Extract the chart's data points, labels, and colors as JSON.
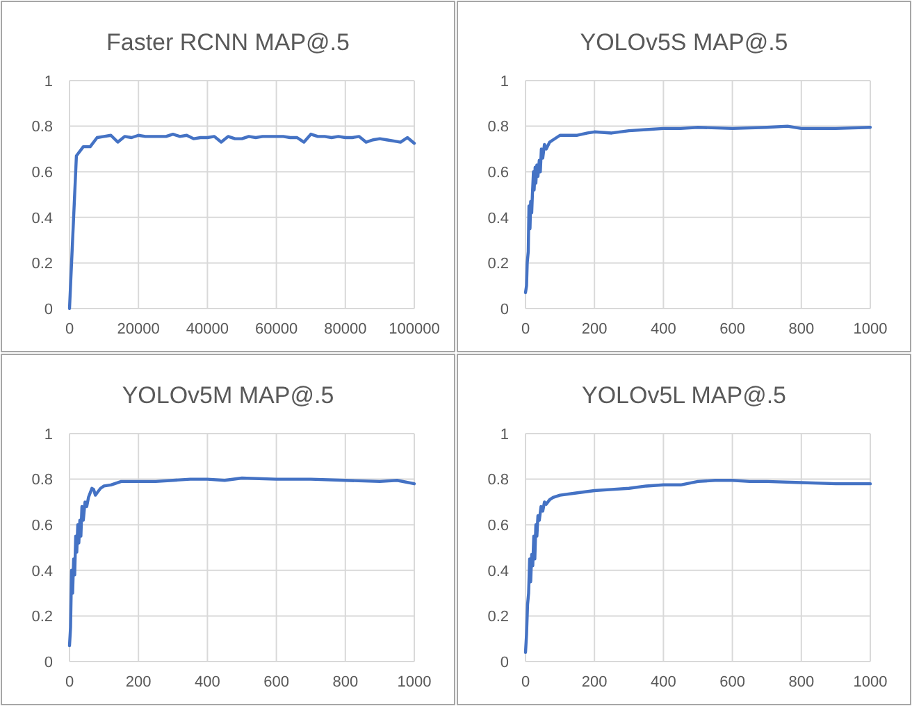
{
  "chart_data": [
    {
      "type": "line",
      "title": "Faster RCNN MAP@.5",
      "xlim": [
        0,
        100000
      ],
      "xticks": [
        0,
        20000,
        40000,
        60000,
        80000,
        100000
      ],
      "ylim": [
        0,
        1
      ],
      "yticks": [
        0,
        0.2,
        0.4,
        0.6,
        0.8,
        1
      ],
      "grid": true,
      "marker": "none",
      "line_style": "solid",
      "series": [
        {
          "color": "#4472c4",
          "x": [
            0,
            2000,
            4000,
            6000,
            8000,
            10000,
            12000,
            14000,
            16000,
            18000,
            20000,
            22000,
            24000,
            26000,
            28000,
            30000,
            32000,
            34000,
            36000,
            38000,
            40000,
            42000,
            44000,
            46000,
            48000,
            50000,
            52000,
            54000,
            56000,
            58000,
            60000,
            62000,
            64000,
            66000,
            68000,
            70000,
            72000,
            74000,
            76000,
            78000,
            80000,
            82000,
            84000,
            86000,
            88000,
            90000,
            92000,
            94000,
            96000,
            98000,
            100000
          ],
          "values": [
            0,
            0.67,
            0.71,
            0.71,
            0.75,
            0.755,
            0.76,
            0.73,
            0.755,
            0.75,
            0.76,
            0.755,
            0.755,
            0.755,
            0.755,
            0.765,
            0.755,
            0.76,
            0.745,
            0.75,
            0.75,
            0.755,
            0.73,
            0.755,
            0.745,
            0.745,
            0.755,
            0.75,
            0.755,
            0.755,
            0.755,
            0.755,
            0.75,
            0.75,
            0.73,
            0.765,
            0.755,
            0.755,
            0.75,
            0.755,
            0.75,
            0.75,
            0.755,
            0.73,
            0.74,
            0.745,
            0.74,
            0.735,
            0.73,
            0.75,
            0.725
          ]
        }
      ]
    },
    {
      "type": "line",
      "title": "YOLOv5S MAP@.5",
      "xlim": [
        0,
        1000
      ],
      "xticks": [
        0,
        200,
        400,
        600,
        800,
        1000
      ],
      "ylim": [
        0,
        1
      ],
      "yticks": [
        0,
        0.2,
        0.4,
        0.6,
        0.8,
        1
      ],
      "grid": true,
      "marker": "none",
      "line_style": "solid",
      "series": [
        {
          "color": "#4472c4",
          "x": [
            0,
            3,
            5,
            8,
            10,
            13,
            15,
            18,
            20,
            23,
            25,
            28,
            30,
            33,
            36,
            40,
            43,
            46,
            50,
            55,
            60,
            70,
            80,
            90,
            100,
            120,
            150,
            180,
            200,
            250,
            300,
            350,
            400,
            450,
            500,
            600,
            700,
            760,
            800,
            900,
            1000
          ],
          "values": [
            0.07,
            0.1,
            0.2,
            0.25,
            0.45,
            0.35,
            0.47,
            0.42,
            0.5,
            0.6,
            0.52,
            0.62,
            0.55,
            0.63,
            0.58,
            0.65,
            0.6,
            0.7,
            0.66,
            0.72,
            0.7,
            0.73,
            0.74,
            0.75,
            0.76,
            0.76,
            0.76,
            0.77,
            0.775,
            0.77,
            0.78,
            0.785,
            0.79,
            0.79,
            0.795,
            0.79,
            0.795,
            0.8,
            0.79,
            0.79,
            0.795
          ]
        }
      ]
    },
    {
      "type": "line",
      "title": "YOLOv5M MAP@.5",
      "xlim": [
        0,
        1000
      ],
      "xticks": [
        0,
        200,
        400,
        600,
        800,
        1000
      ],
      "ylim": [
        0,
        1
      ],
      "yticks": [
        0,
        0.2,
        0.4,
        0.6,
        0.8,
        1
      ],
      "grid": true,
      "marker": "none",
      "line_style": "solid",
      "series": [
        {
          "color": "#4472c4",
          "x": [
            0,
            3,
            6,
            9,
            12,
            15,
            18,
            21,
            24,
            27,
            30,
            33,
            36,
            40,
            45,
            50,
            55,
            60,
            65,
            70,
            75,
            80,
            90,
            100,
            120,
            150,
            200,
            250,
            300,
            350,
            400,
            450,
            500,
            600,
            700,
            800,
            900,
            950,
            1000
          ],
          "values": [
            0.07,
            0.15,
            0.4,
            0.3,
            0.45,
            0.38,
            0.55,
            0.48,
            0.6,
            0.52,
            0.62,
            0.55,
            0.68,
            0.62,
            0.7,
            0.68,
            0.72,
            0.74,
            0.76,
            0.755,
            0.73,
            0.74,
            0.76,
            0.77,
            0.775,
            0.79,
            0.79,
            0.79,
            0.795,
            0.8,
            0.8,
            0.795,
            0.805,
            0.8,
            0.8,
            0.795,
            0.79,
            0.795,
            0.78
          ]
        }
      ]
    },
    {
      "type": "line",
      "title": "YOLOv5L MAP@.5",
      "xlim": [
        0,
        1000
      ],
      "xticks": [
        0,
        200,
        400,
        600,
        800,
        1000
      ],
      "ylim": [
        0,
        1
      ],
      "yticks": [
        0,
        0.2,
        0.4,
        0.6,
        0.8,
        1
      ],
      "grid": true,
      "marker": "none",
      "line_style": "solid",
      "series": [
        {
          "color": "#4472c4",
          "x": [
            0,
            3,
            6,
            9,
            12,
            15,
            18,
            21,
            24,
            27,
            30,
            33,
            36,
            40,
            45,
            50,
            55,
            60,
            70,
            80,
            100,
            150,
            200,
            250,
            300,
            350,
            400,
            450,
            500,
            550,
            600,
            650,
            700,
            800,
            900,
            1000
          ],
          "values": [
            0.04,
            0.12,
            0.25,
            0.3,
            0.45,
            0.35,
            0.47,
            0.42,
            0.55,
            0.45,
            0.6,
            0.55,
            0.64,
            0.62,
            0.68,
            0.66,
            0.7,
            0.69,
            0.71,
            0.72,
            0.73,
            0.74,
            0.75,
            0.755,
            0.76,
            0.77,
            0.775,
            0.775,
            0.79,
            0.795,
            0.795,
            0.79,
            0.79,
            0.785,
            0.78,
            0.78
          ]
        }
      ]
    }
  ]
}
